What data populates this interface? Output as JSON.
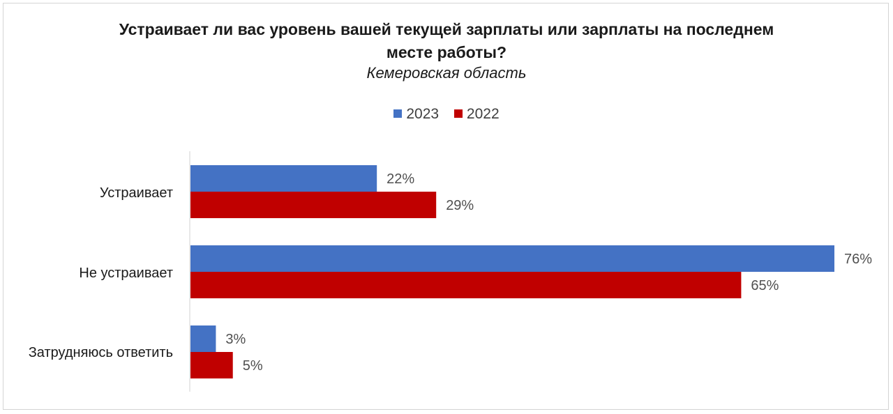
{
  "title": "Устраивает ли вас уровень вашей текущей зарплаты или зарплаты на последнем месте работы?",
  "subtitle": "Кемеровская область",
  "legend": [
    {
      "name": "2023",
      "color": "#4472C4"
    },
    {
      "name": "2022",
      "color": "#C00000"
    }
  ],
  "chart_data": {
    "type": "bar",
    "orientation": "horizontal",
    "title": "Устраивает ли вас уровень вашей текущей зарплаты или зарплаты на последнем месте работы?",
    "subtitle": "Кемеровская область",
    "categories": [
      "Устраивает",
      "Не устраивает",
      "Затрудняюсь ответить"
    ],
    "series": [
      {
        "name": "2023",
        "color": "#4472C4",
        "values": [
          22,
          76,
          3
        ],
        "labels": [
          "22%",
          "76%",
          "3%"
        ]
      },
      {
        "name": "2022",
        "color": "#C00000",
        "values": [
          29,
          65,
          5
        ],
        "labels": [
          "29%",
          "65%",
          "5%"
        ]
      }
    ],
    "value_unit": "%",
    "xlim": [
      0,
      76
    ],
    "grid": false,
    "legend_position": "top",
    "value_axis_visible": false
  }
}
